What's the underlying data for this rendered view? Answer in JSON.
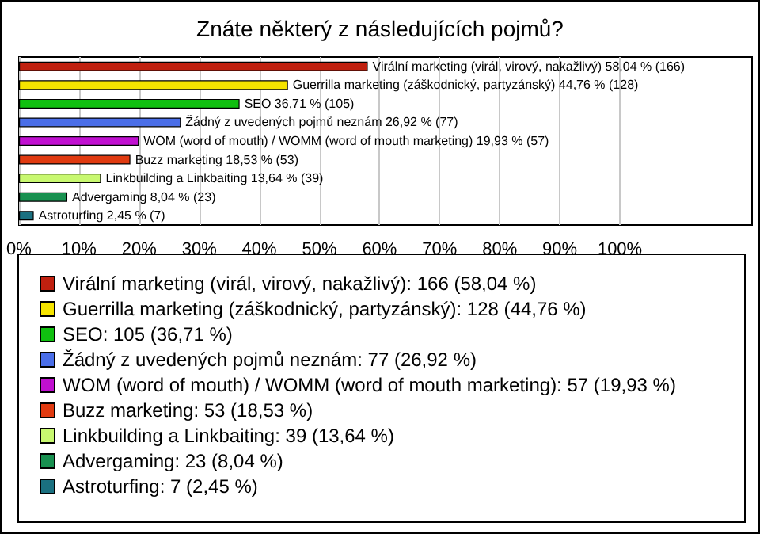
{
  "chart_data": {
    "type": "bar",
    "orientation": "horizontal",
    "title": "Znáte některý z následujících pojmů?",
    "categories": [
      null,
      null,
      null,
      null,
      null,
      null,
      null,
      null,
      null
    ],
    "xlim": [
      0,
      122
    ],
    "xticks": [
      {
        "value": 0,
        "label": "0%"
      },
      {
        "value": 10,
        "label": "10%"
      },
      {
        "value": 20,
        "label": "20%"
      },
      {
        "value": 30,
        "label": "30%"
      },
      {
        "value": 40,
        "label": "40%"
      },
      {
        "value": 50,
        "label": "50%"
      },
      {
        "value": 60,
        "label": "60%"
      },
      {
        "value": 70,
        "label": "70%"
      },
      {
        "value": 80,
        "label": "80%"
      },
      {
        "value": 90,
        "label": "90%"
      },
      {
        "value": 100,
        "label": "100%"
      }
    ],
    "grid": "x",
    "legend": "bottom",
    "series": [
      {
        "name": "Virální marketing (virál, virový, nakažlivý): 166 (58,04 %)",
        "color": "#c0200f",
        "values": [
          58.04,
          null,
          null,
          null,
          null,
          null,
          null,
          null,
          null
        ],
        "value_labels": [
          "Virální marketing (virál, virový, nakažlivý) 58,04 % (166)",
          null,
          null,
          null,
          null,
          null,
          null,
          null,
          null
        ]
      },
      {
        "name": "Guerrilla marketing (záškodnický, partyzánský): 128 (44,76 %)",
        "color": "#f5e400",
        "values": [
          null,
          44.76,
          null,
          null,
          null,
          null,
          null,
          null,
          null
        ],
        "value_labels": [
          null,
          "Guerrilla marketing (záškodnický, partyzánský) 44,76 % (128)",
          null,
          null,
          null,
          null,
          null,
          null,
          null
        ]
      },
      {
        "name": "SEO: 105 (36,71 %)",
        "color": "#10c010",
        "values": [
          null,
          null,
          36.71,
          null,
          null,
          null,
          null,
          null,
          null
        ],
        "value_labels": [
          null,
          null,
          "SEO 36,71 % (105)",
          null,
          null,
          null,
          null,
          null,
          null
        ]
      },
      {
        "name": "Žádný z uvedených pojmů neznám: 77 (26,92 %)",
        "color": "#4a6ee8",
        "values": [
          null,
          null,
          null,
          26.92,
          null,
          null,
          null,
          null,
          null
        ],
        "value_labels": [
          null,
          null,
          null,
          "Žádný z uvedených pojmů neznám 26,92 % (77)",
          null,
          null,
          null,
          null,
          null
        ]
      },
      {
        "name": "WOM (word of mouth) / WOMM (word of mouth marketing): 57 (19,93 %)",
        "color": "#c010d0",
        "values": [
          null,
          null,
          null,
          null,
          19.93,
          null,
          null,
          null,
          null
        ],
        "value_labels": [
          null,
          null,
          null,
          null,
          "WOM (word of mouth) / WOMM (word of mouth marketing) 19,93 % (57)",
          null,
          null,
          null,
          null
        ]
      },
      {
        "name": "Buzz marketing: 53 (18,53 %)",
        "color": "#e03a10",
        "values": [
          null,
          null,
          null,
          null,
          null,
          18.53,
          null,
          null,
          null
        ],
        "value_labels": [
          null,
          null,
          null,
          null,
          null,
          "Buzz marketing 18,53 % (53)",
          null,
          null,
          null
        ]
      },
      {
        "name": "Linkbuilding a Linkbaiting: 39 (13,64 %)",
        "color": "#c8f870",
        "values": [
          null,
          null,
          null,
          null,
          null,
          null,
          13.64,
          null,
          null
        ],
        "value_labels": [
          null,
          null,
          null,
          null,
          null,
          null,
          "Linkbuilding a Linkbaiting 13,64 % (39)",
          null,
          null
        ]
      },
      {
        "name": "Advergaming: 23 (8,04 %)",
        "color": "#189050",
        "values": [
          null,
          null,
          null,
          null,
          null,
          null,
          null,
          8.04,
          null
        ],
        "value_labels": [
          null,
          null,
          null,
          null,
          null,
          null,
          null,
          "Advergaming 8,04 % (23)",
          null
        ]
      },
      {
        "name": "Astroturfing: 7 (2,45 %)",
        "color": "#1a7080",
        "values": [
          null,
          null,
          null,
          null,
          null,
          null,
          null,
          null,
          2.45
        ],
        "value_labels": [
          null,
          null,
          null,
          null,
          null,
          null,
          null,
          null,
          "Astroturfing 2,45 % (7)"
        ]
      }
    ]
  }
}
